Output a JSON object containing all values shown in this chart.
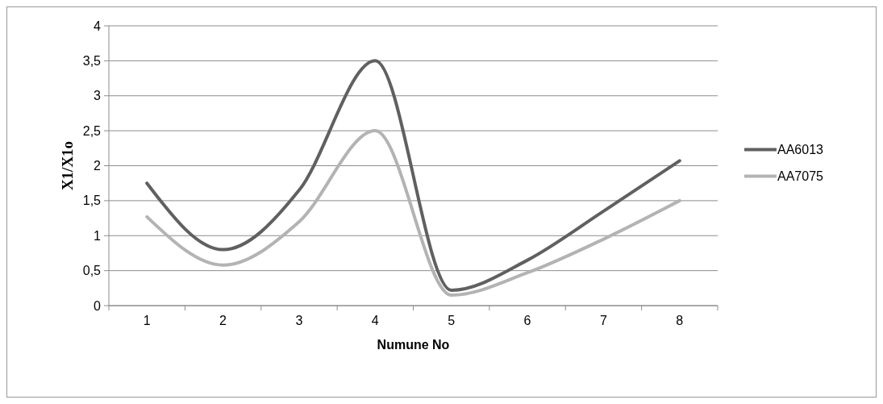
{
  "chart_data": {
    "type": "line",
    "xlabel": "Numune No",
    "ylabel": "X1/X1o",
    "categories": [
      "1",
      "2",
      "3",
      "4",
      "5",
      "6",
      "7",
      "8"
    ],
    "series": [
      {
        "name": "AA6013",
        "color": "#606060",
        "values": [
          1.75,
          0.8,
          1.65,
          3.5,
          0.22,
          0.65,
          1.35,
          2.07
        ]
      },
      {
        "name": "AA7075",
        "color": "#b3b3b3",
        "values": [
          1.27,
          0.58,
          1.2,
          2.5,
          0.15,
          0.47,
          0.95,
          1.5
        ]
      }
    ],
    "ylim": [
      0,
      4
    ],
    "yticks": [
      0,
      {
        "value": 0.5,
        "label": "0,5"
      },
      1,
      {
        "value": 1.5,
        "label": "1,5"
      },
      2,
      {
        "value": 2.5,
        "label": "2,5"
      },
      3,
      {
        "value": 3.5,
        "label": "3,5"
      },
      4
    ],
    "grid": "y",
    "legend": "right",
    "marker": "none",
    "line_style": "solid"
  }
}
